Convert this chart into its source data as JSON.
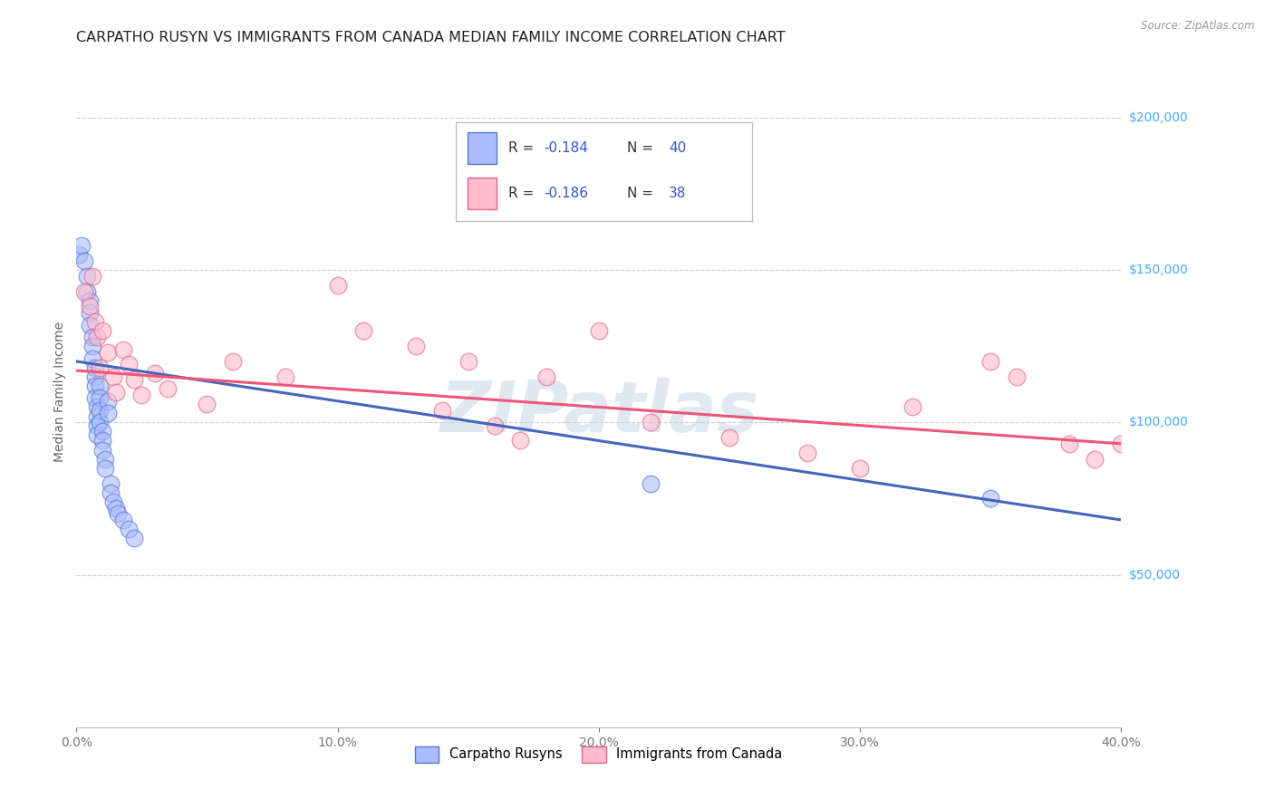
{
  "title": "CARPATHO RUSYN VS IMMIGRANTS FROM CANADA MEDIAN FAMILY INCOME CORRELATION CHART",
  "source": "Source: ZipAtlas.com",
  "ylabel": "Median Family Income",
  "xlim": [
    0,
    0.4
  ],
  "ylim": [
    0,
    220000
  ],
  "watermark": "ZIPatlas",
  "legend1_r": "-0.184",
  "legend1_n": "40",
  "legend2_r": "-0.186",
  "legend2_n": "38",
  "blue_fill": "#aabbff",
  "blue_edge": "#5577cc",
  "pink_fill": "#ffbbcc",
  "pink_edge": "#dd6688",
  "blue_line": "#4466bb",
  "pink_line": "#ee5577",
  "r_n_color": "#3355cc",
  "grid_color": "#cccccc",
  "right_label_color": "#44aaff",
  "ytick_values": [
    50000,
    100000,
    150000,
    200000
  ],
  "ytick_labels": [
    "$50,000",
    "$100,000",
    "$150,000",
    "$200,000"
  ],
  "xtick_values": [
    0.0,
    0.1,
    0.2,
    0.3,
    0.4
  ],
  "xtick_labels": [
    "0.0%",
    "10.0%",
    "20.0%",
    "30.0%",
    "40.0%"
  ],
  "blue_x": [
    0.001,
    0.002,
    0.003,
    0.004,
    0.004,
    0.005,
    0.005,
    0.005,
    0.006,
    0.006,
    0.006,
    0.007,
    0.007,
    0.007,
    0.007,
    0.008,
    0.008,
    0.008,
    0.008,
    0.009,
    0.009,
    0.009,
    0.009,
    0.01,
    0.01,
    0.01,
    0.011,
    0.011,
    0.012,
    0.012,
    0.013,
    0.013,
    0.014,
    0.015,
    0.016,
    0.018,
    0.02,
    0.022,
    0.22,
    0.35
  ],
  "blue_y": [
    155000,
    158000,
    153000,
    148000,
    143000,
    140000,
    136000,
    132000,
    128000,
    125000,
    121000,
    118000,
    115000,
    112000,
    108000,
    105000,
    102000,
    99000,
    96000,
    112000,
    108000,
    104000,
    100000,
    97000,
    94000,
    91000,
    88000,
    85000,
    107000,
    103000,
    80000,
    77000,
    74000,
    72000,
    70000,
    68000,
    65000,
    62000,
    80000,
    75000
  ],
  "pink_x": [
    0.003,
    0.005,
    0.006,
    0.007,
    0.008,
    0.009,
    0.01,
    0.012,
    0.014,
    0.015,
    0.018,
    0.02,
    0.022,
    0.025,
    0.03,
    0.035,
    0.05,
    0.06,
    0.08,
    0.1,
    0.11,
    0.13,
    0.14,
    0.15,
    0.16,
    0.17,
    0.18,
    0.2,
    0.22,
    0.25,
    0.28,
    0.3,
    0.32,
    0.35,
    0.36,
    0.38,
    0.39,
    0.4
  ],
  "pink_y": [
    143000,
    138000,
    148000,
    133000,
    128000,
    118000,
    130000,
    123000,
    115000,
    110000,
    124000,
    119000,
    114000,
    109000,
    116000,
    111000,
    106000,
    120000,
    115000,
    145000,
    130000,
    125000,
    104000,
    120000,
    99000,
    94000,
    115000,
    130000,
    100000,
    95000,
    90000,
    85000,
    105000,
    120000,
    115000,
    93000,
    88000,
    93000
  ],
  "blue_trend": [
    0.0,
    120000,
    0.4,
    68000
  ],
  "pink_trend": [
    0.0,
    117000,
    0.4,
    93000
  ]
}
